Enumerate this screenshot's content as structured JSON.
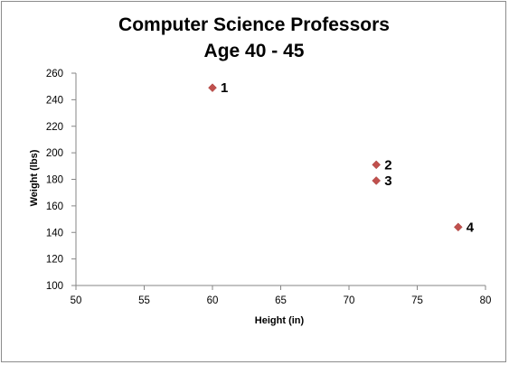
{
  "chart_data": {
    "type": "scatter",
    "title": [
      "Computer Science Professors",
      "Age 40 - 45"
    ],
    "xlabel": "Height (in)",
    "ylabel": "Weight (lbs)",
    "xlim": [
      50,
      80
    ],
    "ylim": [
      100,
      260
    ],
    "xticks": [
      50,
      55,
      60,
      65,
      70,
      75,
      80
    ],
    "yticks": [
      100,
      120,
      140,
      160,
      180,
      200,
      220,
      240,
      260
    ],
    "grid": false,
    "legend": "none",
    "marker": "diamond",
    "marker_color": "#c0504d",
    "points": [
      {
        "x": 60,
        "y": 249,
        "label": "1"
      },
      {
        "x": 72,
        "y": 191,
        "label": "2"
      },
      {
        "x": 72,
        "y": 179,
        "label": "3"
      },
      {
        "x": 78,
        "y": 144,
        "label": "4"
      }
    ]
  }
}
